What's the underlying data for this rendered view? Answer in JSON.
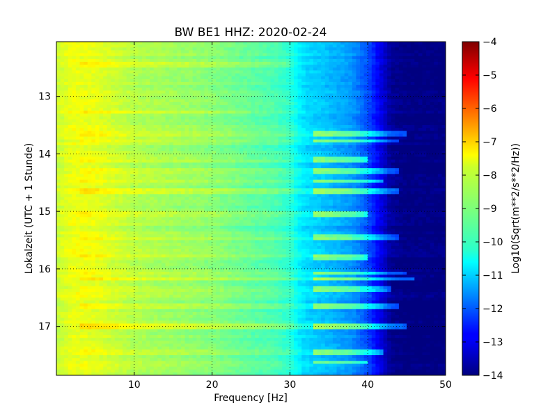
{
  "chart_data": {
    "type": "heatmap",
    "title": "BW BE1 HHZ: 2020-02-24",
    "xlabel": "Frequency [Hz]",
    "ylabel": "Lokalzeit (UTC + 1 Stunde)",
    "xlim": [
      0,
      50
    ],
    "ylim": [
      12.05,
      17.85
    ],
    "y_inverted": true,
    "x_ticks": [
      10,
      20,
      30,
      40,
      50
    ],
    "x_tick_labels": [
      "10",
      "20",
      "30",
      "40",
      "50"
    ],
    "y_ticks": [
      13,
      14,
      15,
      16,
      17
    ],
    "y_tick_labels": [
      "13",
      "14",
      "15",
      "16",
      "17"
    ],
    "grid": true,
    "colormap": "jet",
    "colorbar": {
      "label": "Log10(Sqrt(m**2/s**2/Hz))",
      "range": [
        -14,
        -4
      ],
      "ticks": [
        -4,
        -5,
        -6,
        -7,
        -8,
        -9,
        -10,
        -11,
        -12,
        -13,
        -14
      ],
      "tick_labels": [
        "−4",
        "−5",
        "−6",
        "−7",
        "−8",
        "−9",
        "−10",
        "−11",
        "−12",
        "−13",
        "−14"
      ]
    },
    "spectrum_profile": {
      "frequency_hz": [
        0,
        2,
        5,
        10,
        15,
        20,
        25,
        28,
        30,
        31,
        32,
        35,
        38,
        40,
        42,
        43,
        45,
        50
      ],
      "value": [
        -8.3,
        -7.9,
        -8.0,
        -8.5,
        -8.7,
        -8.9,
        -9.3,
        -9.5,
        -9.8,
        -10.3,
        -10.6,
        -10.9,
        -11.3,
        -12.0,
        -13.2,
        -13.8,
        -14.0,
        -14.0
      ]
    },
    "highlighted_rows": [
      {
        "time": 12.45,
        "offset": 0.35,
        "fmax": 30
      },
      {
        "time": 13.28,
        "offset": 0.25,
        "fmax": 25
      },
      {
        "time": 13.65,
        "offset": 0.3,
        "fmax": 45
      },
      {
        "time": 13.78,
        "offset": 0.4,
        "fmax": 44
      },
      {
        "time": 14.1,
        "offset": 0.2,
        "fmax": 40
      },
      {
        "time": 14.3,
        "offset": 0.35,
        "fmax": 44
      },
      {
        "time": 14.47,
        "offset": 0.2,
        "fmax": 42
      },
      {
        "time": 14.65,
        "offset": 0.4,
        "fmax": 44
      },
      {
        "time": 15.05,
        "offset": 0.2,
        "fmax": 40
      },
      {
        "time": 15.45,
        "offset": 0.3,
        "fmax": 44
      },
      {
        "time": 15.8,
        "offset": 0.2,
        "fmax": 40
      },
      {
        "time": 16.08,
        "offset": 0.35,
        "fmax": 45
      },
      {
        "time": 16.18,
        "offset": 0.5,
        "fmax": 46
      },
      {
        "time": 16.35,
        "offset": 0.3,
        "fmax": 43
      },
      {
        "time": 16.65,
        "offset": 0.45,
        "fmax": 44
      },
      {
        "time": 17.0,
        "offset": 0.7,
        "fmax": 45
      },
      {
        "time": 17.45,
        "offset": 0.25,
        "fmax": 42
      },
      {
        "time": 17.62,
        "offset": 0.2,
        "fmax": 40
      }
    ]
  }
}
